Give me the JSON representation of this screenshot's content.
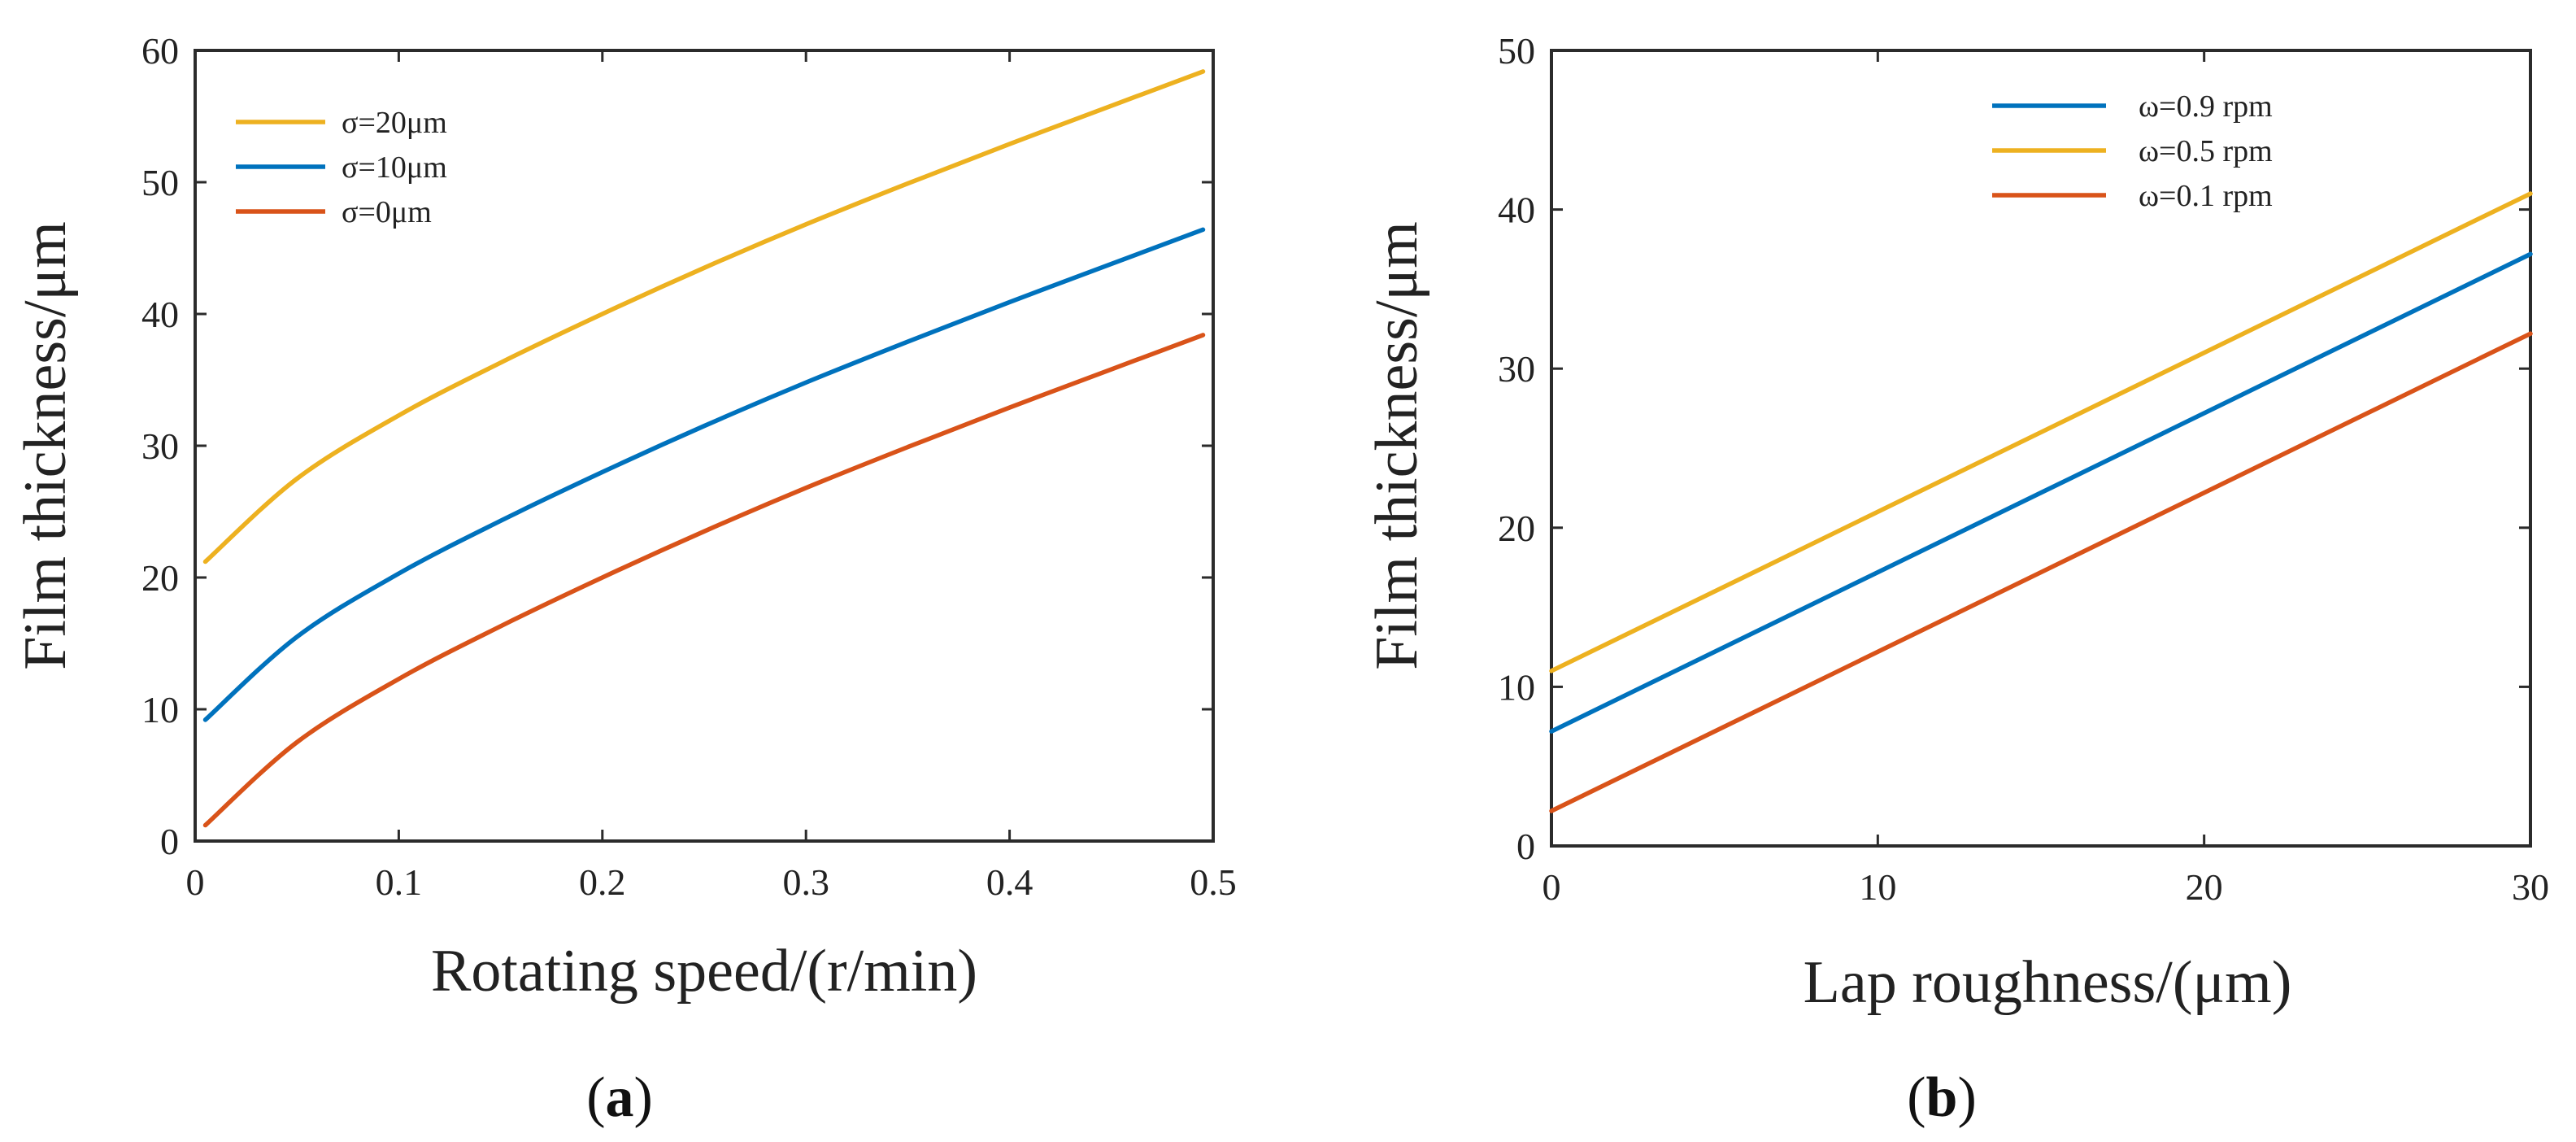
{
  "chart_data": [
    {
      "type": "line",
      "caption": "a",
      "xlabel": "Rotating speed/(r/min)",
      "ylabel": "Film thickness/μm",
      "xlim": [
        0,
        0.5
      ],
      "ylim": [
        0,
        60
      ],
      "xticks": [
        "0",
        "0.1",
        "0.2",
        "0.3",
        "0.4",
        "0.5"
      ],
      "yticks": [
        "0",
        "10",
        "20",
        "30",
        "40",
        "50",
        "60"
      ],
      "grid": false,
      "legend_position": "top-left",
      "x": [
        0.005,
        0.05,
        0.1,
        0.15,
        0.2,
        0.25,
        0.3,
        0.35,
        0.4,
        0.45,
        0.495
      ],
      "series": [
        {
          "name": "σ=20μm",
          "color": "#EDB120",
          "values": [
            21.2,
            27.5,
            32.3,
            36.3,
            40.0,
            43.5,
            46.8,
            49.9,
            52.9,
            55.8,
            58.4
          ]
        },
        {
          "name": "σ=10μm",
          "color": "#0072BD",
          "values": [
            9.2,
            15.5,
            20.3,
            24.3,
            28.0,
            31.5,
            34.8,
            37.9,
            40.9,
            43.8,
            46.4
          ]
        },
        {
          "name": "σ=0μm",
          "color": "#D95319",
          "values": [
            1.2,
            7.5,
            12.3,
            16.3,
            20.0,
            23.5,
            26.8,
            29.9,
            32.9,
            35.8,
            38.4
          ]
        }
      ]
    },
    {
      "type": "line",
      "caption": "b",
      "xlabel": "Lap roughness/(μm)",
      "ylabel": "Film thickness/μm",
      "xlim": [
        0,
        30
      ],
      "ylim": [
        0,
        50
      ],
      "xticks": [
        "0",
        "10",
        "20",
        "30"
      ],
      "yticks": [
        "0",
        "10",
        "20",
        "30",
        "40",
        "50"
      ],
      "grid": false,
      "legend_position": "top-center",
      "x": [
        0,
        30
      ],
      "series": [
        {
          "name": "ω=0.9 rpm",
          "color": "#0072BD",
          "values": [
            7.2,
            37.2
          ]
        },
        {
          "name": "ω=0.5 rpm",
          "color": "#EDB120",
          "values": [
            11.0,
            41.0
          ]
        },
        {
          "name": "ω=0.1 rpm",
          "color": "#D95319",
          "values": [
            2.2,
            32.2
          ]
        }
      ]
    }
  ]
}
